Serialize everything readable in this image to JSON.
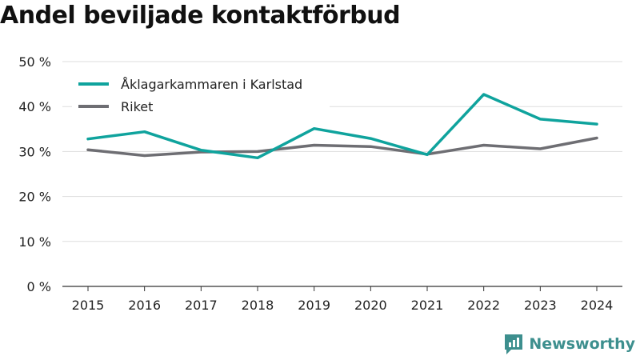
{
  "title": "Andel beviljade kontaktförbud",
  "brand": {
    "name": "Newsworthy",
    "icon": "newsworthy-logo-icon",
    "color": "#3d8f8e"
  },
  "chart_data": {
    "type": "line",
    "title": "Andel beviljade kontaktförbud",
    "x": [
      "2015",
      "2016",
      "2017",
      "2018",
      "2019",
      "2020",
      "2021",
      "2022",
      "2023",
      "2024"
    ],
    "series": [
      {
        "name": "Åklagarkammaren i Karlstad",
        "color": "#0fa39d",
        "values": [
          32.8,
          34.4,
          30.3,
          28.6,
          35.1,
          32.9,
          29.3,
          42.7,
          37.2,
          36.1
        ]
      },
      {
        "name": "Riket",
        "color": "#6e6e73",
        "values": [
          30.4,
          29.1,
          29.9,
          30.0,
          31.4,
          31.1,
          29.4,
          31.4,
          30.6,
          33.0
        ]
      }
    ],
    "ylim": [
      0,
      50
    ],
    "yticks": [
      0,
      10,
      20,
      30,
      40,
      50
    ],
    "ytick_labels": [
      "0 %",
      "10 %",
      "20 %",
      "30 %",
      "40 %",
      "50 %"
    ],
    "grid": true,
    "legend": "top-left"
  }
}
